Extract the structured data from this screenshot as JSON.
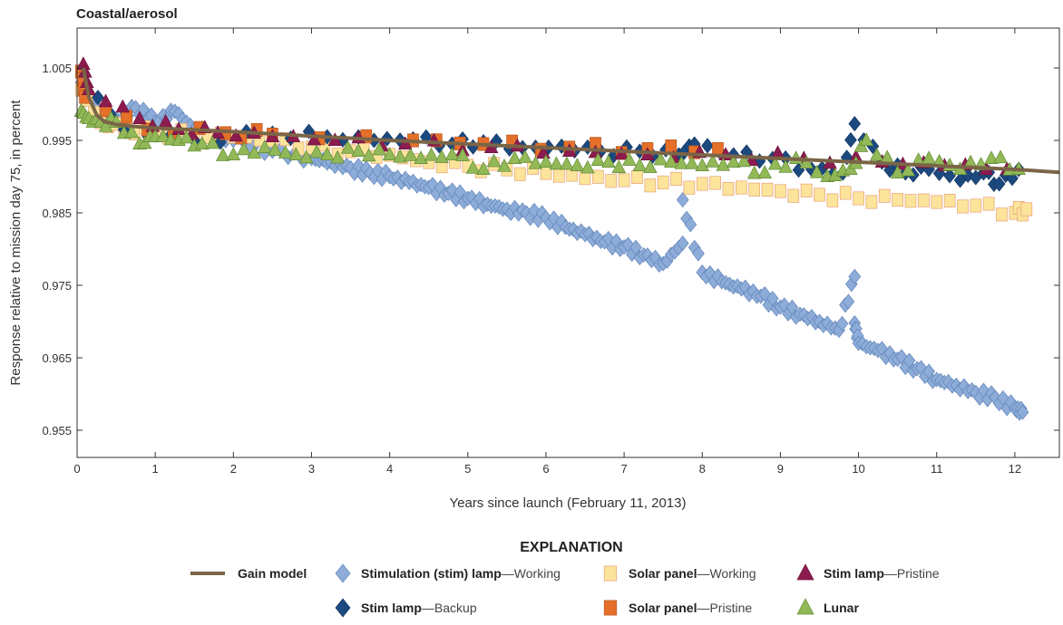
{
  "chart_data": {
    "type": "scatter",
    "title": "Coastal/aerosol",
    "xlabel": "Years since launch (February 11, 2013)",
    "ylabel": "Response relative to mission day 75, in percent",
    "xlim": [
      0,
      12.57
    ],
    "ylim": [
      0.95125,
      1.0105
    ],
    "xticks": [
      0,
      1,
      2,
      3,
      4,
      5,
      6,
      7,
      8,
      9,
      10,
      11,
      12
    ],
    "yticks": [
      0.955,
      0.965,
      0.975,
      0.985,
      0.995,
      1.005
    ],
    "ytick_labels": [
      "0.955",
      "0.965",
      "0.975",
      "0.985",
      "0.995",
      "1.005"
    ],
    "legend_title": "EXPLANATION",
    "legend_position": "bottom",
    "series": [
      {
        "name": "Gain model",
        "bold": "Gain model",
        "light": "",
        "kind": "line",
        "color": "#7a6547",
        "x": [
          0.08,
          0.15,
          0.25,
          0.35,
          0.5,
          0.75,
          1,
          2,
          3,
          4,
          5,
          6,
          7,
          8,
          9,
          10,
          11,
          12,
          12.57
        ],
        "y": [
          1.005,
          1.001,
          0.9985,
          0.9976,
          0.9972,
          0.9969,
          0.9967,
          0.9962,
          0.9956,
          0.995,
          0.9945,
          0.994,
          0.9935,
          0.993,
          0.9925,
          0.992,
          0.9915,
          0.991,
          0.9906
        ]
      },
      {
        "name": "Stimulation (stim) lamp—Working",
        "bold": "Stimulation (stim) lamp",
        "light": "—Working",
        "kind": "diamond",
        "color": "#8eacd8",
        "stroke": "#5f84ba",
        "x": [
          0.05,
          0.25,
          0.5,
          0.75,
          1,
          1.25,
          1.5,
          2,
          2.5,
          3,
          3.25,
          3.5,
          3.75,
          4,
          4.25,
          4.5,
          4.75,
          5,
          5.25,
          5.5,
          5.75,
          6,
          6.25,
          6.5,
          6.75,
          7,
          7.25,
          7.5,
          7.75,
          7.75,
          8,
          8.25,
          8.5,
          8.75,
          9,
          9.25,
          9.5,
          9.75,
          9.95,
          9.95,
          10,
          10.25,
          10.5,
          10.75,
          11,
          11.25,
          11.5,
          11.75,
          12,
          12.1
        ],
        "y": [
          1.003,
          0.9995,
          0.998,
          0.9995,
          0.9975,
          0.999,
          0.9965,
          0.995,
          0.9935,
          0.9925,
          0.992,
          0.9912,
          0.9905,
          0.99,
          0.9892,
          0.9885,
          0.9877,
          0.987,
          0.9862,
          0.9855,
          0.985,
          0.9843,
          0.983,
          0.982,
          0.981,
          0.9803,
          0.9792,
          0.978,
          0.9808,
          0.9868,
          0.9768,
          0.9755,
          0.9745,
          0.9735,
          0.972,
          0.971,
          0.97,
          0.9688,
          0.9762,
          0.9698,
          0.967,
          0.966,
          0.9648,
          0.9635,
          0.962,
          0.9612,
          0.9602,
          0.9595,
          0.958,
          0.9575
        ]
      },
      {
        "name": "Solar panel—Working",
        "bold": "Solar panel",
        "light": "—Working",
        "kind": "square",
        "color": "#fce49b",
        "stroke": "#e7a07a",
        "x": [
          0.05,
          0.3,
          0.6,
          1,
          1.5,
          2,
          2.5,
          3,
          3.5,
          4,
          4.5,
          5,
          5.5,
          6,
          6.5,
          7,
          7.5,
          8,
          8.5,
          9,
          9.5,
          10,
          10.5,
          11,
          11.5,
          12,
          12.15
        ],
        "y": [
          1.002,
          0.9975,
          0.9968,
          0.996,
          0.9958,
          0.9955,
          0.995,
          0.994,
          0.9935,
          0.993,
          0.992,
          0.9915,
          0.991,
          0.9905,
          0.9898,
          0.9895,
          0.9892,
          0.989,
          0.9885,
          0.988,
          0.9875,
          0.987,
          0.9868,
          0.9865,
          0.986,
          0.985,
          0.9855
        ]
      },
      {
        "name": "Stim lamp—Pristine",
        "bold": "Stim lamp",
        "light": "—Pristine",
        "kind": "triangle",
        "color": "#8c1c4f",
        "stroke": "#6b1239",
        "x": [
          0.08,
          0.15,
          0.8,
          1.3,
          1.8,
          2.5,
          3.3,
          4.2,
          5.3,
          6.3,
          7.3,
          8.3,
          9.3,
          10.3,
          11.1,
          11.9
        ],
        "y": [
          1.0055,
          1.002,
          0.998,
          0.9965,
          0.996,
          0.9955,
          0.995,
          0.9945,
          0.994,
          0.9935,
          0.993,
          0.993,
          0.9925,
          0.992,
          0.9915,
          0.991
        ]
      },
      {
        "name": "Stim lamp—Backup",
        "bold": "Stim lamp",
        "light": "—Backup",
        "kind": "diamond",
        "color": "#1c4a80",
        "stroke": "#123560",
        "x": [
          0.1,
          0.6,
          1.5,
          2.5,
          3.2,
          3.8,
          4.3,
          4.8,
          5.2,
          5.7,
          6.2,
          6.7,
          7.2,
          7.7,
          7.9,
          8.4,
          8.9,
          9.4,
          9.8,
          9.95,
          10.3,
          10.6,
          10.9,
          11.3,
          11.6,
          11.8,
          12.05
        ],
        "y": [
          1.003,
          0.9965,
          0.995,
          0.996,
          0.9955,
          0.995,
          0.9952,
          0.9945,
          0.9948,
          0.994,
          0.9942,
          0.9935,
          0.9935,
          0.993,
          0.9945,
          0.993,
          0.9925,
          0.991,
          0.9905,
          0.9973,
          0.992,
          0.9905,
          0.991,
          0.9895,
          0.9905,
          0.989,
          0.991
        ]
      },
      {
        "name": "Solar panel—Pristine",
        "bold": "Solar panel",
        "light": "—Pristine",
        "kind": "square",
        "color": "#e5702a",
        "stroke": "#b8561d",
        "x": [
          0.05,
          0.1,
          0.9,
          1.9,
          2.5,
          4.3,
          5.2,
          6.3,
          7.3,
          8.2
        ],
        "y": [
          1.0045,
          1.001,
          0.9965,
          0.996,
          0.9958,
          0.995,
          0.9945,
          0.994,
          0.9938,
          0.9938
        ]
      },
      {
        "name": "Lunar",
        "bold": "Lunar",
        "light": "",
        "kind": "triangle",
        "color": "#93b858",
        "stroke": "#5f8a32",
        "x": [
          0.05,
          0.15,
          0.3,
          0.5,
          0.8,
          1,
          1.3,
          1.6,
          2,
          2.4,
          2.8,
          3.2,
          3.6,
          4,
          4.4,
          4.8,
          5.2,
          5.6,
          6,
          6.4,
          6.8,
          7.2,
          7.6,
          8,
          8.4,
          8.8,
          9.2,
          9.6,
          9.9,
          10.1,
          10.5,
          10.9,
          11.3,
          11.7,
          12.05
        ],
        "y": [
          0.999,
          0.998,
          0.9975,
          0.9975,
          0.9945,
          0.9955,
          0.995,
          0.9945,
          0.993,
          0.994,
          0.993,
          0.993,
          0.9935,
          0.993,
          0.9925,
          0.993,
          0.991,
          0.9925,
          0.992,
          0.9915,
          0.992,
          0.9915,
          0.992,
          0.9915,
          0.992,
          0.9905,
          0.9925,
          0.99,
          0.991,
          0.995,
          0.9905,
          0.9925,
          0.991,
          0.9925,
          0.991
        ]
      }
    ]
  }
}
